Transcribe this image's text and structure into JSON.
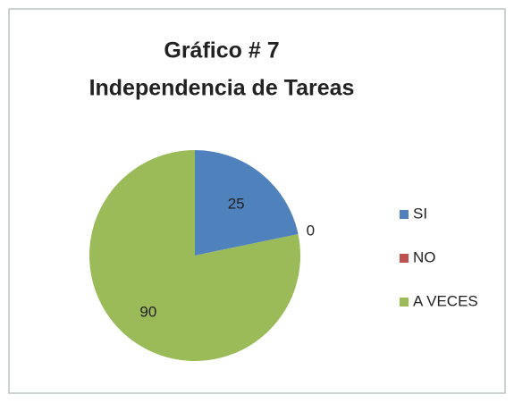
{
  "chart_data": {
    "type": "pie",
    "title": [
      "Gráfico # 7",
      "Independencia de Tareas"
    ],
    "categories": [
      "SI",
      "NO",
      "A VECES"
    ],
    "values": [
      25,
      0,
      90
    ],
    "colors": [
      "#4f81bd",
      "#c0504d",
      "#9bbb59"
    ],
    "legend": "right"
  }
}
